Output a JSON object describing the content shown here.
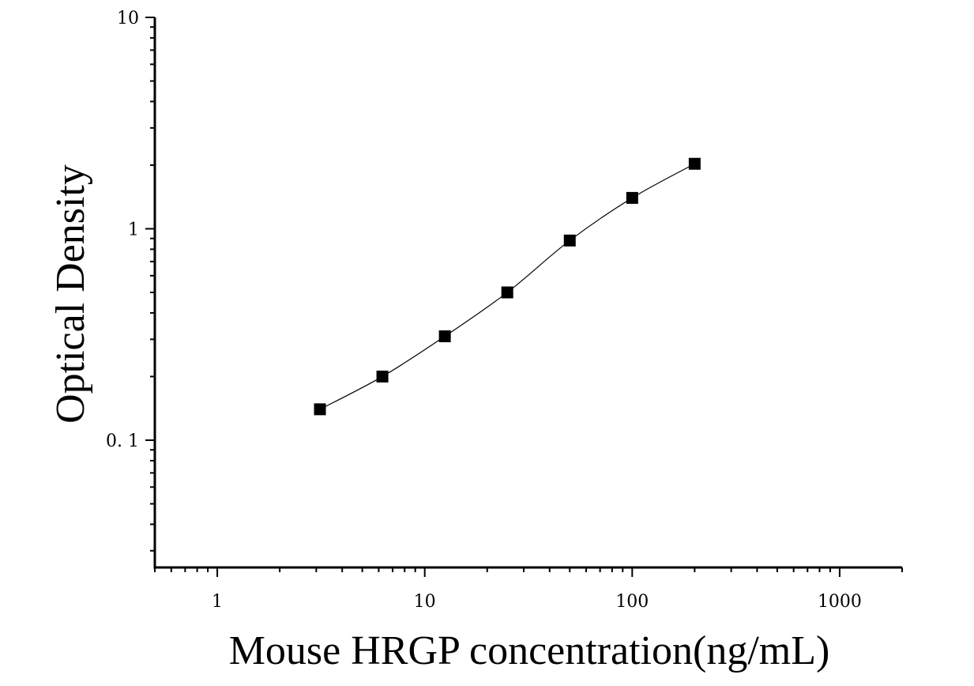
{
  "chart_data": {
    "type": "scatter",
    "xlabel": "Mouse HRGP concentration(ng/mL)",
    "ylabel": "Optical Density",
    "xscale": "log",
    "yscale": "log",
    "xlim": [
      0.5,
      2000
    ],
    "ylim": [
      0.025,
      10
    ],
    "x_ticks": [
      {
        "value": 1,
        "label": "1"
      },
      {
        "value": 10,
        "label": "10"
      },
      {
        "value": 100,
        "label": "100"
      },
      {
        "value": 1000,
        "label": "1000"
      }
    ],
    "y_ticks": [
      {
        "value": 10,
        "label": "10"
      },
      {
        "value": 1,
        "label": "1"
      },
      {
        "value": 0.1,
        "label": "0. 1"
      }
    ],
    "grid": false,
    "marker_color": "#000000",
    "line_color": "#000000",
    "series": [
      {
        "x": [
          3.125,
          6.25,
          12.5,
          25,
          50,
          100,
          200
        ],
        "y": [
          0.14,
          0.2,
          0.31,
          0.5,
          0.88,
          1.4,
          2.03
        ]
      }
    ]
  }
}
